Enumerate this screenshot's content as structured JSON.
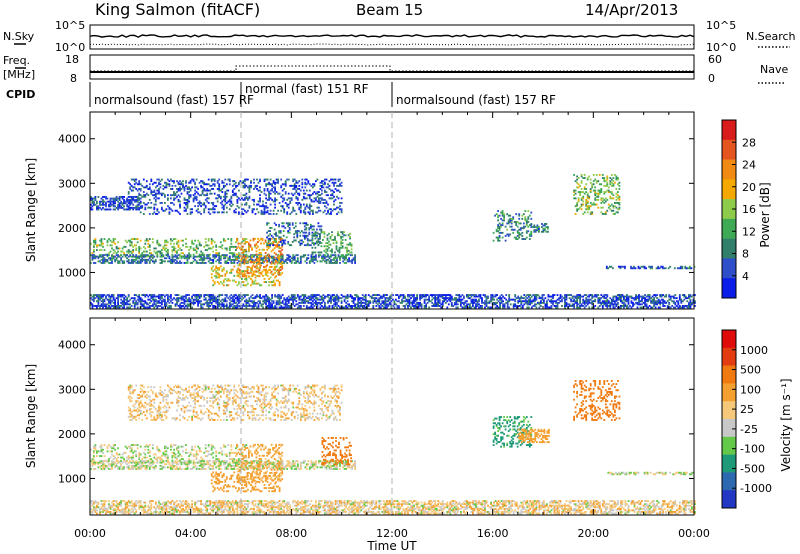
{
  "header": {
    "station": "King Salmon (fitACF)",
    "beam": "Beam 15",
    "date": "14/Apr/2013"
  },
  "top_panels": {
    "nsky_label": "N.Sky",
    "nsearch_label": "N.Search",
    "freq_label": "Freq.",
    "freq_unit": "[MHz]",
    "nave_label": "Nave",
    "cpid_label": "CPID",
    "noise_ticks_left": [
      "10^5",
      "10^0"
    ],
    "noise_ticks_right": [
      "10^5",
      "10^0"
    ],
    "freq_ticks": [
      "18",
      "8"
    ],
    "nave_ticks": [
      "60",
      "0"
    ],
    "cpid_segments": [
      {
        "label": "normalsound (fast) 157 RF",
        "start_h": 0,
        "end_h": 6
      },
      {
        "label": "normal (fast) 151 RF",
        "start_h": 6,
        "end_h": 12
      },
      {
        "label": "normalsound (fast) 157 RF",
        "start_h": 12,
        "end_h": 24
      }
    ]
  },
  "colors": {
    "power_scale": [
      "#0a1ee8",
      "#2e4fc9",
      "#317e6a",
      "#3faa56",
      "#8fcb4a",
      "#f5a800",
      "#f08a12",
      "#e45520",
      "#d81b1b"
    ],
    "velocity_scale": [
      "#2237c4",
      "#2d69b0",
      "#1f9a78",
      "#64c948",
      "#c8c8c8",
      "#f5c87a",
      "#f4a030",
      "#f07a10",
      "#e33c10",
      "#e00c0c"
    ]
  },
  "chart_data": [
    {
      "type": "heatmap",
      "name": "power",
      "xlabel": "",
      "ylabel": "Slant Range [km]",
      "xlim": [
        0,
        24
      ],
      "ylim": [
        180,
        4600
      ],
      "yticks": [
        1000,
        2000,
        3000,
        4000
      ],
      "colorbar": {
        "label": "Power [dB]",
        "ticks": [
          "28",
          "24",
          "20",
          "16",
          "12",
          "8",
          "4"
        ],
        "range": [
          0,
          32
        ]
      },
      "regions": [
        {
          "t0": 0.0,
          "t1": 6.2,
          "r0": 1350,
          "r1": 1750,
          "level": 14
        },
        {
          "t0": 0.0,
          "t1": 10.5,
          "r0": 1200,
          "r1": 1400,
          "level": 8
        },
        {
          "t0": 4.8,
          "t1": 7.5,
          "r0": 700,
          "r1": 1150,
          "level": 18
        },
        {
          "t0": 5.8,
          "t1": 7.6,
          "r0": 900,
          "r1": 1750,
          "level": 22
        },
        {
          "t0": 7.0,
          "t1": 9.2,
          "r0": 1600,
          "r1": 2100,
          "level": 7
        },
        {
          "t0": 8.8,
          "t1": 10.4,
          "r0": 1400,
          "r1": 1900,
          "level": 12
        },
        {
          "t0": 1.5,
          "t1": 10.0,
          "r0": 2300,
          "r1": 3100,
          "level": 5
        },
        {
          "t0": 0.0,
          "t1": 2.0,
          "r0": 2400,
          "r1": 2700,
          "level": 5
        },
        {
          "t0": 16.0,
          "t1": 17.5,
          "r0": 1700,
          "r1": 2400,
          "level": 10
        },
        {
          "t0": 17.5,
          "t1": 18.2,
          "r0": 1900,
          "r1": 2100,
          "level": 8
        },
        {
          "t0": 19.2,
          "t1": 21.0,
          "r0": 2300,
          "r1": 3200,
          "level": 14
        },
        {
          "t0": 20.5,
          "t1": 24.0,
          "r0": 1080,
          "r1": 1150,
          "level": 6
        },
        {
          "t0": 0.0,
          "t1": 24.0,
          "r0": 200,
          "r1": 500,
          "level": 5
        }
      ]
    },
    {
      "type": "heatmap",
      "name": "velocity",
      "xlabel": "Time UT",
      "ylabel": "Slant Range [km]",
      "xlim": [
        0,
        24
      ],
      "ylim": [
        180,
        4600
      ],
      "yticks": [
        1000,
        2000,
        3000,
        4000
      ],
      "xticks": [
        "00:00",
        "04:00",
        "08:00",
        "12:00",
        "16:00",
        "20:00",
        "00:00"
      ],
      "colorbar": {
        "label": "Velocity [m s⁻¹]",
        "ticks": [
          "1000",
          "500",
          "100",
          "25",
          "-25",
          "-100",
          "-500",
          "-1000"
        ],
        "range": [
          -1200,
          1200
        ]
      },
      "regions": [
        {
          "t0": 0.0,
          "t1": 6.2,
          "r0": 1350,
          "r1": 1750,
          "level": 0
        },
        {
          "t0": 0.0,
          "t1": 10.5,
          "r0": 1200,
          "r1": 1400,
          "level": 0
        },
        {
          "t0": 4.8,
          "t1": 7.5,
          "r0": 700,
          "r1": 1150,
          "level": -300
        },
        {
          "t0": 5.8,
          "t1": 7.6,
          "r0": 900,
          "r1": 1750,
          "level": -150
        },
        {
          "t0": 9.2,
          "t1": 10.4,
          "r0": 1300,
          "r1": 1900,
          "level": -800
        },
        {
          "t0": 1.5,
          "t1": 10.0,
          "r0": 2300,
          "r1": 3100,
          "level": -60
        },
        {
          "t0": 16.0,
          "t1": 17.5,
          "r0": 1700,
          "r1": 2400,
          "level": 150
        },
        {
          "t0": 17.0,
          "t1": 18.2,
          "r0": 1800,
          "r1": 2100,
          "level": -400
        },
        {
          "t0": 19.2,
          "t1": 21.0,
          "r0": 2300,
          "r1": 3200,
          "level": -600
        },
        {
          "t0": 20.5,
          "t1": 24.0,
          "r0": 1080,
          "r1": 1150,
          "level": 0
        },
        {
          "t0": 0.0,
          "t1": 24.0,
          "r0": 200,
          "r1": 500,
          "level": -50
        }
      ]
    }
  ]
}
